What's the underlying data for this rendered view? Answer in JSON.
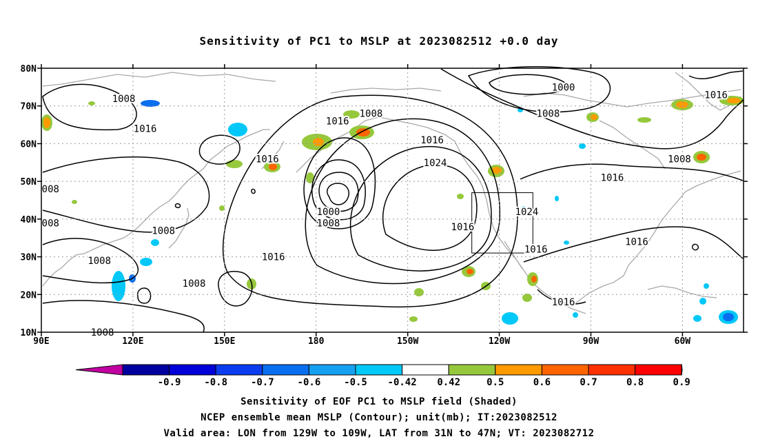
{
  "title": "Sensitivity of PC1 to MSLP at 2023082512 +0.0 day",
  "axes": {
    "lat_labels": [
      "80N",
      "70N",
      "60N",
      "50N",
      "40N",
      "30N",
      "20N",
      "10N"
    ],
    "lon_labels": [
      "90E",
      "120E",
      "150E",
      "180",
      "150W",
      "120W",
      "90W",
      "60W"
    ],
    "lon_range_deg_east": [
      90,
      320
    ],
    "lat_range_deg": [
      10,
      80
    ],
    "grid": true
  },
  "contour_labels": [
    {
      "text": "1008",
      "lon": 117,
      "lat": 72
    },
    {
      "text": "1016",
      "lon": 124,
      "lat": 64
    },
    {
      "text": "008",
      "lon": 93,
      "lat": 48
    },
    {
      "text": "008",
      "lon": 93,
      "lat": 39
    },
    {
      "text": "1008",
      "lon": 130,
      "lat": 37
    },
    {
      "text": "1008",
      "lon": 109,
      "lat": 29
    },
    {
      "text": "1008",
      "lon": 140,
      "lat": 23
    },
    {
      "text": "1008",
      "lon": 110,
      "lat": 10
    },
    {
      "text": "1016",
      "lon": 164,
      "lat": 56
    },
    {
      "text": "1016",
      "lon": 187,
      "lat": 66
    },
    {
      "text": "1008",
      "lon": 198,
      "lat": 68
    },
    {
      "text": "1000",
      "lon": 184,
      "lat": 42
    },
    {
      "text": "1008",
      "lon": 184,
      "lat": 39
    },
    {
      "text": "1016",
      "lon": 166,
      "lat": 30
    },
    {
      "text": "1016",
      "lon": 218,
      "lat": 61
    },
    {
      "text": "1024",
      "lon": 219,
      "lat": 55
    },
    {
      "text": "1000",
      "lon": 261,
      "lat": 75
    },
    {
      "text": "1008",
      "lon": 256,
      "lat": 68
    },
    {
      "text": "1016",
      "lon": 311,
      "lat": 73
    },
    {
      "text": "1008",
      "lon": 299,
      "lat": 56
    },
    {
      "text": "1016",
      "lon": 277,
      "lat": 51
    },
    {
      "text": "1024",
      "lon": 249,
      "lat": 42
    },
    {
      "text": "1016",
      "lon": 228,
      "lat": 38
    },
    {
      "text": "1016",
      "lon": 252,
      "lat": 32
    },
    {
      "text": "1016",
      "lon": 285,
      "lat": 34
    },
    {
      "text": "1016",
      "lon": 261,
      "lat": 18
    }
  ],
  "valid_box": {
    "lon": [
      231,
      251
    ],
    "lat": [
      31,
      47
    ]
  },
  "colorbar": {
    "labels": [
      "-0.9",
      "-0.8",
      "-0.7",
      "-0.6",
      "-0.5",
      "-0.42",
      "0.42",
      "0.5",
      "0.6",
      "0.7",
      "0.8",
      "0.9"
    ],
    "colors": {
      "low_triangle": "#c000a0",
      "bins": [
        "#0000a0",
        "#0000d8",
        "#0a3cf0",
        "#0a6ef0",
        "#14a0f0",
        "#00c8f8",
        "#ffffff",
        "#96c83c",
        "#ff9a00",
        "#ff6400",
        "#ff3000",
        "#ff0000"
      ],
      "high_triangle": "#f5a0c8"
    }
  },
  "footer": [
    "Sensitivity of EOF PC1 to MSLP field (Shaded)",
    "NCEP ensemble mean MSLP (Contour); unit(mb); IT:2023082512",
    "Valid area: LON from 129W to 109W, LAT from 31N to 47N; VT: 2023082712"
  ]
}
